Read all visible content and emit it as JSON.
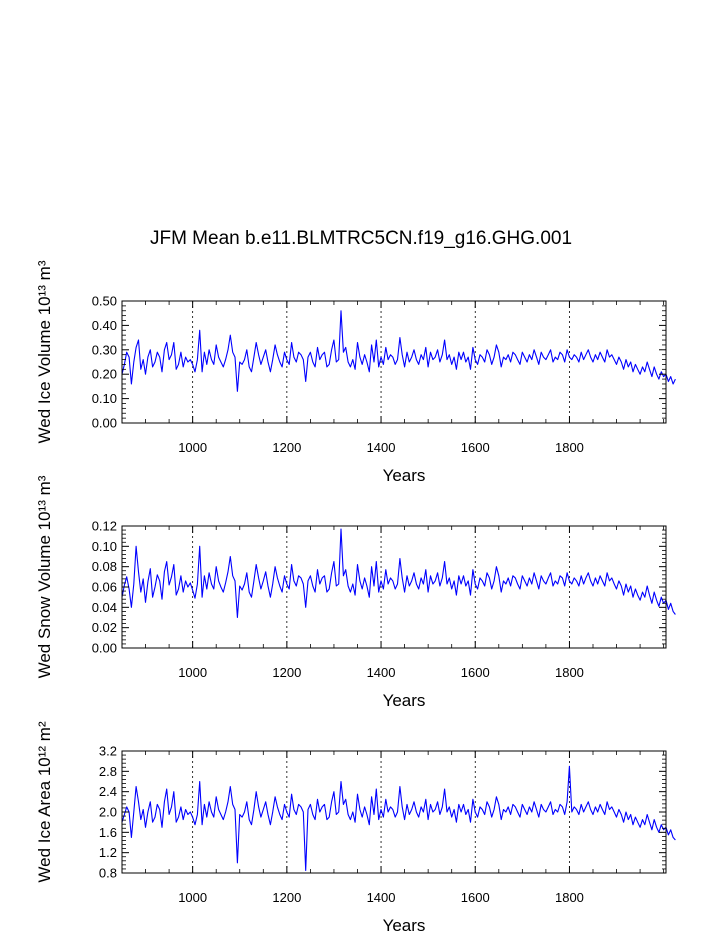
{
  "figure": {
    "title": "JFM Mean b.e11.BLMTRC5CN.f19_g16.GHG.001"
  },
  "chart_data": [
    {
      "type": "line",
      "title": "JFM Mean b.e11.BLMTRC5CN.f19_g16.GHG.001",
      "xlabel": "Years",
      "ylabel": "Wed Ice Volume 10¹³ m³",
      "xlim": [
        850,
        2005
      ],
      "ylim": [
        0.0,
        0.5
      ],
      "xticks": [
        1000,
        1200,
        1400,
        1600,
        1800
      ],
      "xtick_labels": [
        "1000",
        "1200",
        "1400",
        "1600",
        "1800"
      ],
      "yticks": [
        0.0,
        0.1,
        0.2,
        0.3,
        0.4,
        0.5
      ],
      "ytick_labels": [
        "0.00",
        "0.10",
        "0.20",
        "0.30",
        "0.40",
        "0.50"
      ],
      "grid": "vertical dashed at major x ticks",
      "color": "#0000ff",
      "series": [
        {
          "x_start": 850,
          "x_end": 2005,
          "x_step": 5,
          "values": [
            0.2,
            0.24,
            0.29,
            0.27,
            0.16,
            0.25,
            0.31,
            0.34,
            0.22,
            0.26,
            0.2,
            0.27,
            0.3,
            0.23,
            0.25,
            0.29,
            0.27,
            0.21,
            0.3,
            0.33,
            0.26,
            0.28,
            0.33,
            0.22,
            0.24,
            0.29,
            0.23,
            0.27,
            0.25,
            0.26,
            0.24,
            0.21,
            0.26,
            0.38,
            0.21,
            0.29,
            0.24,
            0.3,
            0.26,
            0.24,
            0.32,
            0.27,
            0.25,
            0.23,
            0.26,
            0.3,
            0.36,
            0.29,
            0.27,
            0.13,
            0.25,
            0.24,
            0.26,
            0.3,
            0.23,
            0.21,
            0.27,
            0.33,
            0.28,
            0.24,
            0.27,
            0.3,
            0.25,
            0.21,
            0.26,
            0.32,
            0.28,
            0.25,
            0.23,
            0.29,
            0.26,
            0.24,
            0.33,
            0.27,
            0.25,
            0.29,
            0.28,
            0.26,
            0.17,
            0.27,
            0.29,
            0.25,
            0.23,
            0.31,
            0.26,
            0.28,
            0.29,
            0.23,
            0.24,
            0.3,
            0.34,
            0.25,
            0.26,
            0.46,
            0.29,
            0.31,
            0.25,
            0.23,
            0.26,
            0.22,
            0.33,
            0.27,
            0.24,
            0.28,
            0.25,
            0.21,
            0.32,
            0.25,
            0.34,
            0.23,
            0.27,
            0.24,
            0.31,
            0.26,
            0.28,
            0.27,
            0.24,
            0.26,
            0.35,
            0.28,
            0.23,
            0.29,
            0.25,
            0.27,
            0.3,
            0.26,
            0.24,
            0.28,
            0.26,
            0.31,
            0.23,
            0.29,
            0.26,
            0.27,
            0.3,
            0.25,
            0.28,
            0.34,
            0.26,
            0.28,
            0.24,
            0.27,
            0.22,
            0.29,
            0.26,
            0.29,
            0.25,
            0.27,
            0.22,
            0.31,
            0.26,
            0.24,
            0.28,
            0.27,
            0.25,
            0.3,
            0.28,
            0.24,
            0.27,
            0.32,
            0.29,
            0.23,
            0.27,
            0.26,
            0.28,
            0.25,
            0.29,
            0.28,
            0.26,
            0.24,
            0.29,
            0.27,
            0.25,
            0.28,
            0.26,
            0.3,
            0.27,
            0.24,
            0.29,
            0.27,
            0.26,
            0.28,
            0.3,
            0.25,
            0.27,
            0.26,
            0.29,
            0.28,
            0.25,
            0.3,
            0.27,
            0.26,
            0.28,
            0.27,
            0.25,
            0.29,
            0.26,
            0.28,
            0.3,
            0.27,
            0.25,
            0.28,
            0.26,
            0.29,
            0.27,
            0.25,
            0.3,
            0.27,
            0.28,
            0.26,
            0.24,
            0.27,
            0.25,
            0.22,
            0.26,
            0.23,
            0.25,
            0.21,
            0.24,
            0.22,
            0.2,
            0.23,
            0.21,
            0.25,
            0.22,
            0.19,
            0.23,
            0.2,
            0.18,
            0.21,
            0.19,
            0.2,
            0.17,
            0.19,
            0.16,
            0.18
          ]
        }
      ]
    },
    {
      "type": "line",
      "xlabel": "Years",
      "ylabel": "Wed Snow Volume 10¹³ m³",
      "xlim": [
        850,
        2005
      ],
      "ylim": [
        0.0,
        0.12
      ],
      "xticks": [
        1000,
        1200,
        1400,
        1600,
        1800
      ],
      "xtick_labels": [
        "1000",
        "1200",
        "1400",
        "1600",
        "1800"
      ],
      "yticks": [
        0.0,
        0.02,
        0.04,
        0.06,
        0.08,
        0.1,
        0.12
      ],
      "ytick_labels": [
        "0.00",
        "0.02",
        "0.04",
        "0.06",
        "0.08",
        "0.10",
        "0.12"
      ],
      "grid": "vertical dashed at major x ticks",
      "color": "#0000ff",
      "series": [
        {
          "x_start": 850,
          "x_end": 2005,
          "x_step": 5,
          "values": [
            0.05,
            0.062,
            0.07,
            0.058,
            0.04,
            0.063,
            0.1,
            0.075,
            0.055,
            0.068,
            0.045,
            0.065,
            0.078,
            0.05,
            0.06,
            0.072,
            0.066,
            0.048,
            0.075,
            0.085,
            0.062,
            0.07,
            0.082,
            0.052,
            0.058,
            0.071,
            0.055,
            0.066,
            0.06,
            0.064,
            0.057,
            0.049,
            0.063,
            0.1,
            0.05,
            0.071,
            0.058,
            0.074,
            0.063,
            0.058,
            0.08,
            0.066,
            0.06,
            0.055,
            0.064,
            0.075,
            0.09,
            0.071,
            0.066,
            0.03,
            0.061,
            0.057,
            0.063,
            0.074,
            0.055,
            0.05,
            0.066,
            0.082,
            0.069,
            0.058,
            0.066,
            0.075,
            0.061,
            0.05,
            0.063,
            0.08,
            0.069,
            0.061,
            0.055,
            0.071,
            0.063,
            0.058,
            0.082,
            0.066,
            0.061,
            0.071,
            0.069,
            0.063,
            0.04,
            0.066,
            0.071,
            0.061,
            0.055,
            0.077,
            0.063,
            0.069,
            0.071,
            0.055,
            0.058,
            0.074,
            0.085,
            0.061,
            0.063,
            0.117,
            0.071,
            0.077,
            0.061,
            0.055,
            0.063,
            0.052,
            0.082,
            0.066,
            0.058,
            0.069,
            0.061,
            0.05,
            0.08,
            0.061,
            0.085,
            0.055,
            0.066,
            0.058,
            0.077,
            0.063,
            0.069,
            0.066,
            0.058,
            0.063,
            0.088,
            0.069,
            0.055,
            0.071,
            0.061,
            0.066,
            0.074,
            0.063,
            0.058,
            0.069,
            0.063,
            0.077,
            0.055,
            0.071,
            0.063,
            0.066,
            0.074,
            0.061,
            0.069,
            0.085,
            0.063,
            0.069,
            0.058,
            0.066,
            0.052,
            0.071,
            0.063,
            0.071,
            0.061,
            0.066,
            0.052,
            0.077,
            0.063,
            0.058,
            0.069,
            0.066,
            0.061,
            0.074,
            0.069,
            0.058,
            0.066,
            0.08,
            0.071,
            0.055,
            0.066,
            0.063,
            0.069,
            0.061,
            0.071,
            0.069,
            0.063,
            0.058,
            0.071,
            0.066,
            0.061,
            0.069,
            0.063,
            0.074,
            0.066,
            0.058,
            0.071,
            0.066,
            0.063,
            0.069,
            0.074,
            0.061,
            0.066,
            0.063,
            0.071,
            0.069,
            0.061,
            0.074,
            0.066,
            0.063,
            0.069,
            0.066,
            0.061,
            0.071,
            0.063,
            0.069,
            0.074,
            0.066,
            0.061,
            0.069,
            0.063,
            0.071,
            0.066,
            0.061,
            0.074,
            0.066,
            0.069,
            0.063,
            0.058,
            0.066,
            0.061,
            0.052,
            0.063,
            0.055,
            0.061,
            0.05,
            0.058,
            0.052,
            0.047,
            0.055,
            0.05,
            0.061,
            0.052,
            0.044,
            0.055,
            0.047,
            0.041,
            0.05,
            0.044,
            0.047,
            0.038,
            0.044,
            0.036,
            0.033
          ]
        }
      ]
    },
    {
      "type": "line",
      "xlabel": "Years",
      "ylabel": "Wed Ice Area 10¹² m²",
      "xlim": [
        850,
        2005
      ],
      "ylim": [
        0.8,
        3.2
      ],
      "xticks": [
        1000,
        1200,
        1400,
        1600,
        1800
      ],
      "xtick_labels": [
        "1000",
        "1200",
        "1400",
        "1600",
        "1800"
      ],
      "yticks": [
        0.8,
        1.2,
        1.6,
        2.0,
        2.4,
        2.8,
        3.2
      ],
      "ytick_labels": [
        "0.8",
        "1.2",
        "1.6",
        "2.0",
        "2.4",
        "2.8",
        "3.2"
      ],
      "grid": "vertical dashed at major x ticks",
      "color": "#0000ff",
      "series": [
        {
          "x_start": 850,
          "x_end": 2005,
          "x_step": 5,
          "values": [
            1.8,
            1.95,
            2.1,
            2.0,
            1.5,
            2.0,
            2.5,
            2.2,
            1.85,
            2.05,
            1.7,
            2.0,
            2.2,
            1.8,
            1.9,
            2.15,
            2.05,
            1.7,
            2.2,
            2.45,
            1.95,
            2.1,
            2.4,
            1.8,
            1.9,
            2.1,
            1.85,
            2.05,
            1.95,
            2.0,
            1.9,
            1.75,
            1.95,
            2.6,
            1.75,
            2.15,
            1.9,
            2.2,
            2.0,
            1.9,
            2.3,
            2.05,
            1.95,
            1.85,
            2.0,
            2.2,
            2.5,
            2.15,
            2.05,
            1.0,
            1.95,
            1.9,
            2.0,
            2.2,
            1.85,
            1.75,
            2.05,
            2.4,
            2.1,
            1.9,
            2.05,
            2.2,
            1.95,
            1.75,
            2.0,
            2.3,
            2.1,
            1.95,
            1.85,
            2.15,
            2.0,
            1.9,
            2.35,
            2.05,
            1.95,
            2.15,
            2.1,
            2.0,
            0.85,
            2.05,
            2.15,
            1.95,
            1.85,
            2.25,
            2.0,
            2.1,
            2.15,
            1.85,
            1.9,
            2.2,
            2.4,
            1.95,
            2.0,
            2.6,
            2.15,
            2.25,
            1.95,
            1.85,
            2.0,
            1.8,
            2.35,
            2.05,
            1.9,
            2.1,
            1.95,
            1.75,
            2.3,
            1.95,
            2.45,
            1.85,
            2.05,
            1.9,
            2.25,
            2.0,
            2.1,
            2.05,
            1.9,
            2.0,
            2.5,
            2.1,
            1.85,
            2.15,
            1.95,
            2.05,
            2.2,
            2.0,
            1.9,
            2.1,
            2.0,
            2.25,
            1.85,
            2.15,
            2.0,
            2.05,
            2.2,
            1.95,
            2.1,
            2.45,
            2.0,
            2.1,
            1.9,
            2.05,
            1.8,
            2.15,
            2.0,
            2.15,
            1.95,
            2.05,
            1.8,
            2.25,
            2.0,
            1.9,
            2.1,
            2.05,
            1.95,
            2.2,
            2.1,
            1.9,
            2.05,
            2.3,
            2.15,
            1.85,
            2.05,
            2.0,
            2.1,
            1.95,
            2.15,
            2.1,
            2.0,
            1.9,
            2.15,
            2.05,
            1.95,
            2.1,
            2.0,
            2.2,
            2.05,
            1.9,
            2.15,
            2.05,
            2.0,
            2.1,
            2.2,
            1.95,
            2.05,
            2.0,
            2.15,
            2.1,
            1.95,
            2.2,
            2.9,
            2.0,
            2.1,
            2.05,
            1.95,
            2.15,
            2.0,
            2.1,
            2.2,
            2.05,
            1.95,
            2.1,
            2.0,
            2.15,
            2.05,
            1.95,
            2.2,
            2.05,
            2.1,
            2.0,
            1.9,
            2.05,
            1.95,
            1.8,
            2.0,
            1.85,
            1.95,
            1.75,
            1.9,
            1.8,
            1.7,
            1.85,
            1.75,
            1.95,
            1.8,
            1.65,
            1.85,
            1.7,
            1.6,
            1.75,
            1.65,
            1.7,
            1.55,
            1.65,
            1.5,
            1.45
          ]
        }
      ]
    }
  ]
}
